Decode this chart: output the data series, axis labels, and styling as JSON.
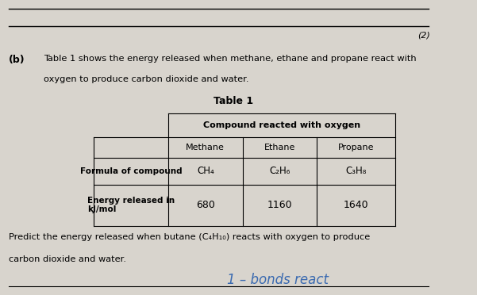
{
  "bg_color": "#d8d4cd",
  "marker_label": "(2)",
  "part_label": "(b)",
  "intro_text_line1": "Table 1 shows the energy released when methane, ethane and propane react with",
  "intro_text_line2": "oxygen to produce carbon dioxide and water.",
  "table_title": "Table 1",
  "col_header": "Compound reacted with oxygen",
  "col_subheaders": [
    "Methane",
    "Ethane",
    "Propane"
  ],
  "row_headers": [
    "Formula of compound",
    "Energy released in\nkJ/mol"
  ],
  "formulas": [
    "CH₄",
    "C₂H₆",
    "C₃H₈"
  ],
  "energies": [
    "680",
    "1160",
    "1640"
  ],
  "predict_line1": "Predict the energy released when butane (C₄H₁₀) reacts with oxygen to produce",
  "predict_line2": "carbon dioxide and water.",
  "handwriting": "1 – bonds react"
}
